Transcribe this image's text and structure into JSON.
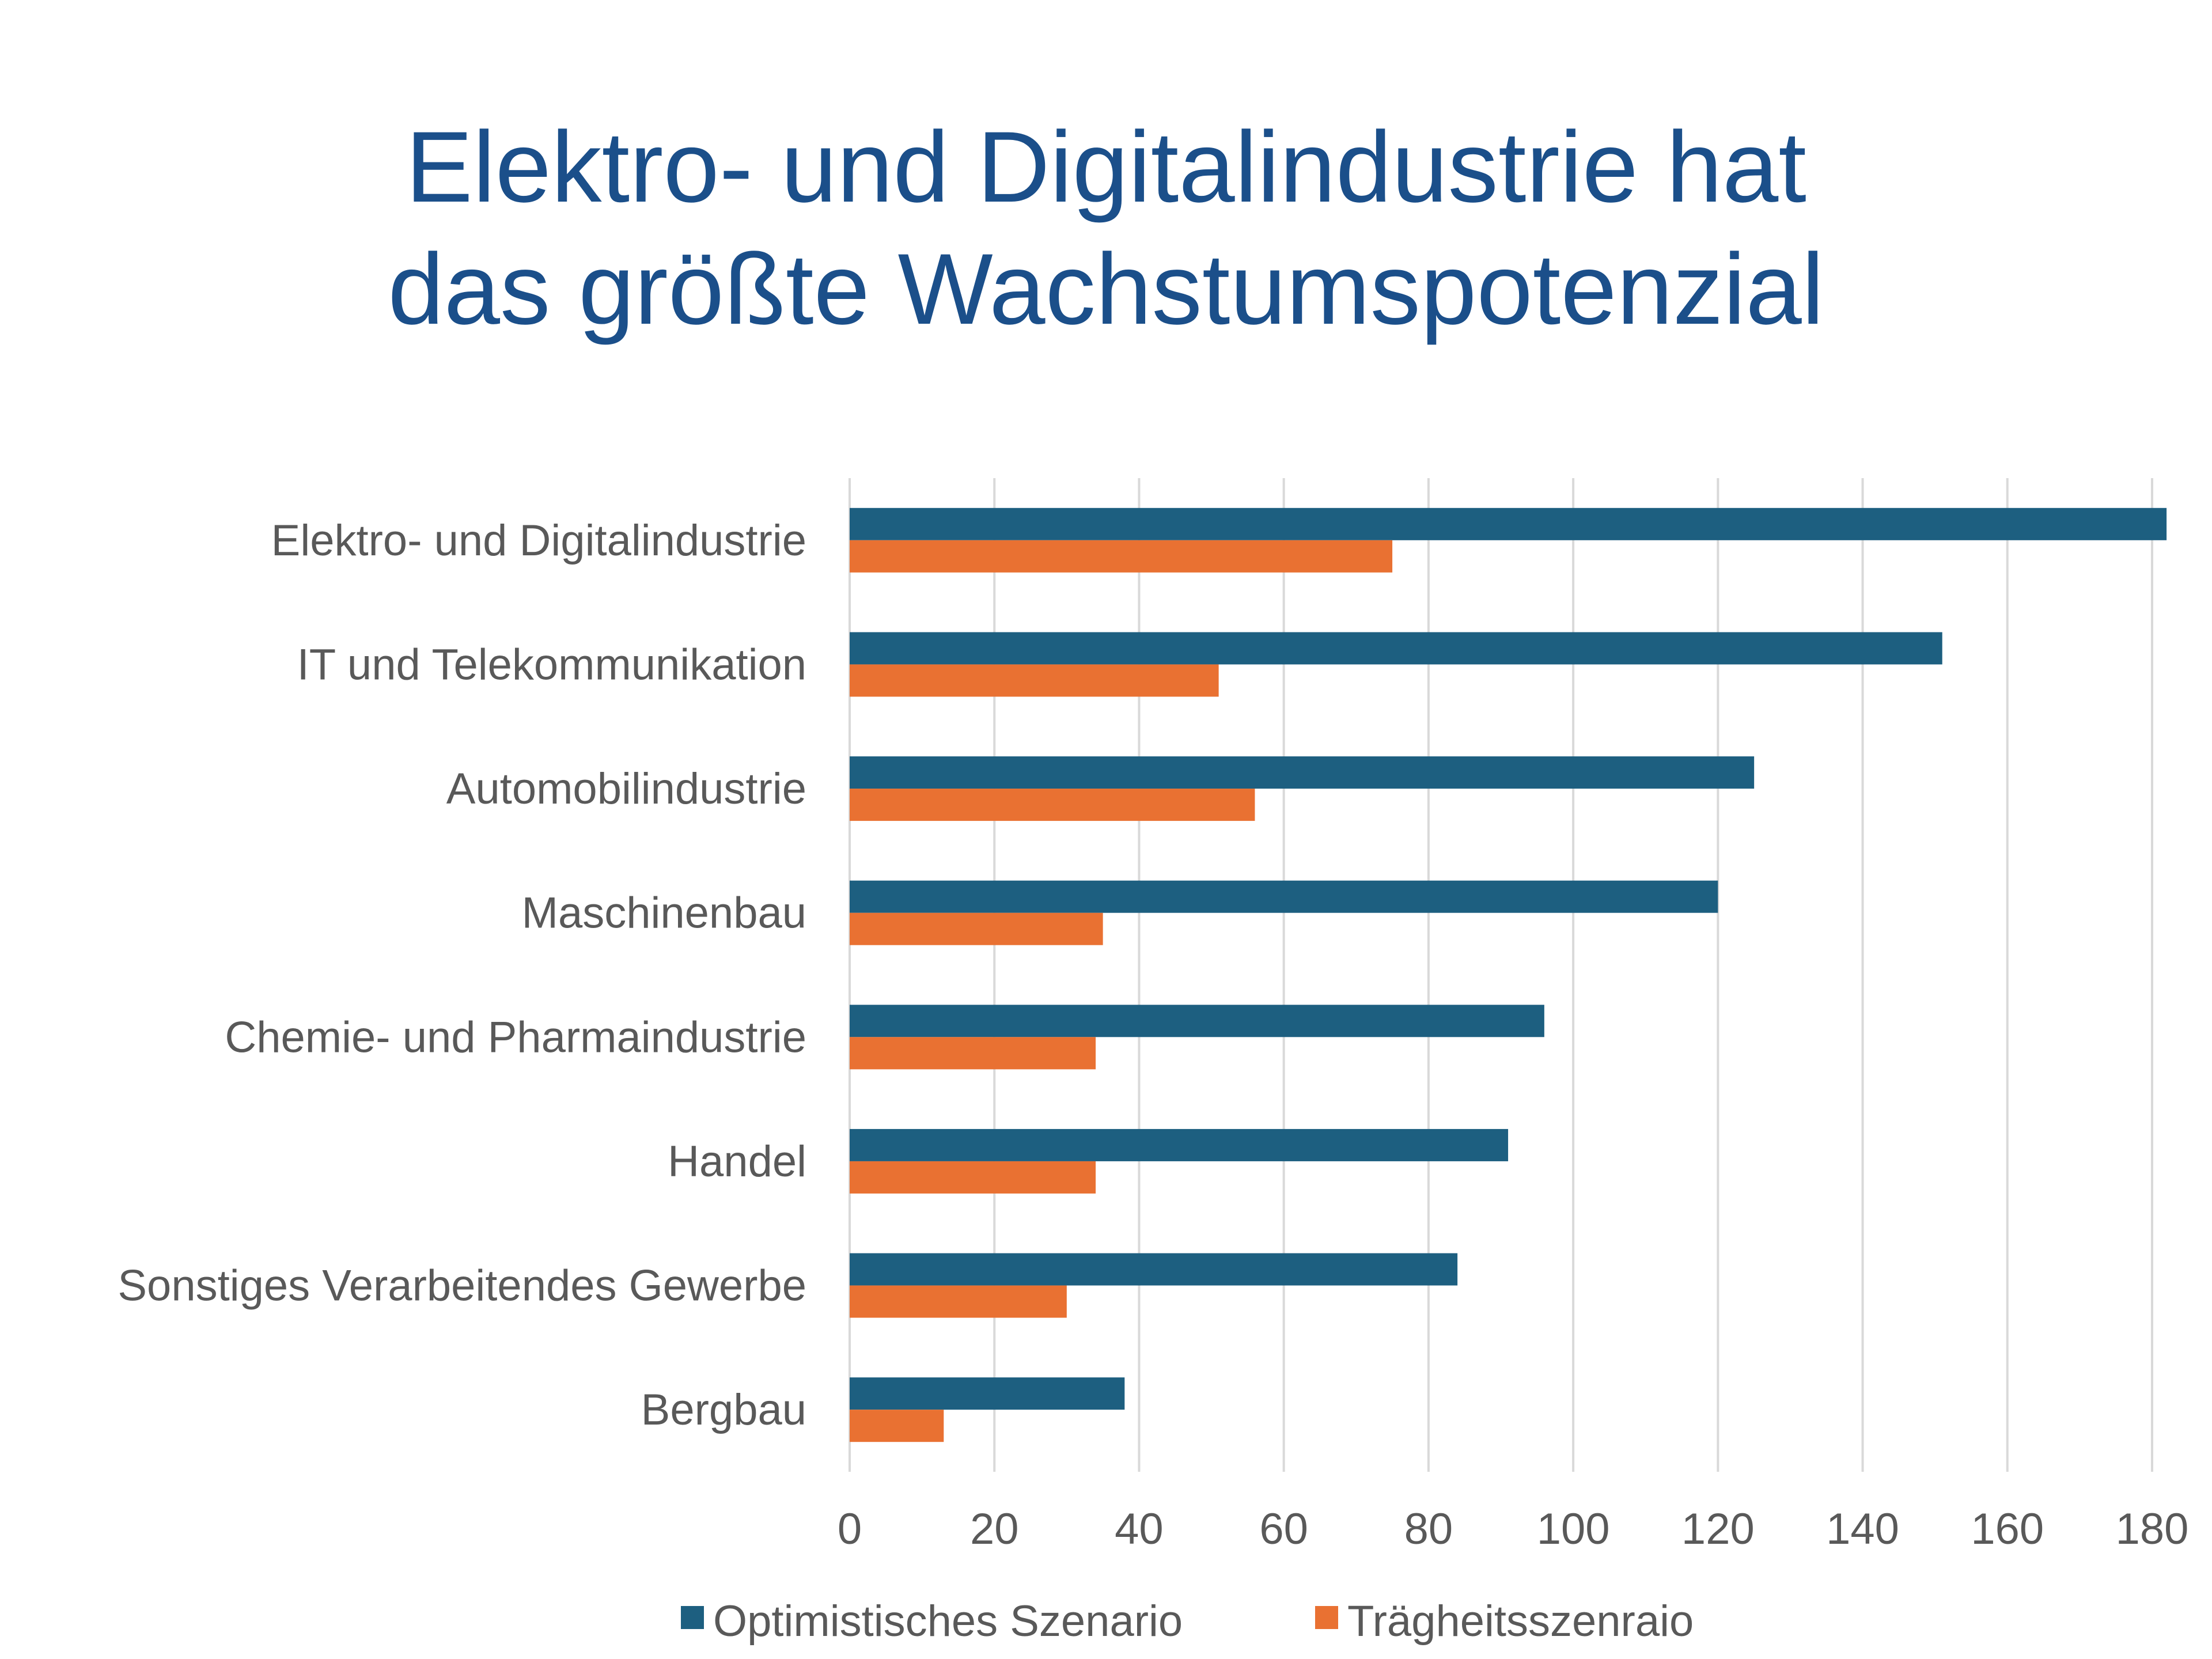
{
  "title": {
    "line1": "Elektro- und Digitalindustrie hat",
    "line2": "das größte Wachstumspotenzial"
  },
  "chart_data": {
    "type": "bar",
    "orientation": "horizontal",
    "title": "Elektro- und Digitalindustrie hat das größte Wachstumspotenzial",
    "categories": [
      "Elektro- und Digitalindustrie",
      "IT und Telekommunikation",
      "Automobilindustrie",
      "Maschinenbau",
      "Chemie- und Pharmaindustrie",
      "Handel",
      "Sonstiges Verarbeitendes Gewerbe",
      "Bergbau"
    ],
    "series": [
      {
        "name": "Optimistisches Szenario",
        "color": "#1d5f80",
        "values": [
          182,
          151,
          125,
          120,
          96,
          91,
          84,
          38
        ]
      },
      {
        "name": "Trägheitsszenraio",
        "color": "#e97132",
        "values": [
          75,
          51,
          56,
          35,
          34,
          34,
          30,
          13
        ]
      }
    ],
    "xlim": [
      0,
      180
    ],
    "xticks": [
      0,
      20,
      40,
      60,
      80,
      100,
      120,
      140,
      160,
      180
    ],
    "xlabel": "",
    "ylabel": "",
    "grid": true,
    "legend": "bottom-center"
  }
}
